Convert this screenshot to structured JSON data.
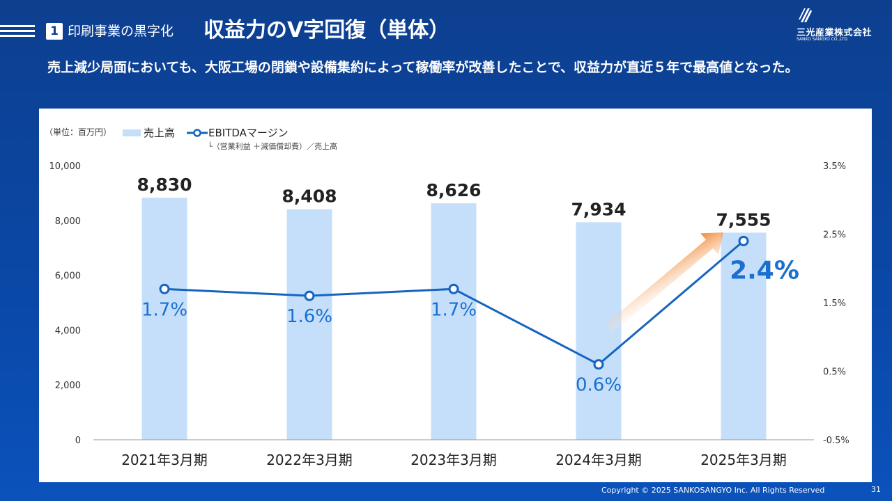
{
  "header": {
    "section_number": "1",
    "section_label": "印刷事業の黒字化",
    "title": "収益力のV字回復（単体）",
    "company_name": "三光産業株式会社",
    "company_sub": "SANKO SANGYO CO.,LTD."
  },
  "lead_text": "売上減少局面においても、大阪工場の閉鎖や設備集約によって稼働率が改善したことで、収益力が直近５年で最高値となった。",
  "footer": {
    "copyright": "Copyright © 2025  SANKOSANGYO Inc. All Rights Reserved",
    "page_number": "31"
  },
  "colors": {
    "bar": "#c5dffa",
    "line": "#1565c0",
    "highlight": "#1a6fd0",
    "arrow": "#f07a1c"
  },
  "chart_data": {
    "type": "bar",
    "unit_label": "（単位：百万円）",
    "categories": [
      "2021年3月期",
      "2022年3月期",
      "2023年3月期",
      "2024年3月期",
      "2025年3月期"
    ],
    "series": [
      {
        "name": "売上高",
        "type": "bar",
        "axis": "left",
        "values": [
          8830,
          8408,
          8626,
          7934,
          7555
        ],
        "value_labels": [
          "8,830",
          "8,408",
          "8,626",
          "7,934",
          "7,555"
        ]
      },
      {
        "name": "EBITDAマージン",
        "type": "line",
        "axis": "right",
        "values": [
          1.7,
          1.6,
          1.7,
          0.6,
          2.4
        ],
        "value_labels": [
          "1.7%",
          "1.6%",
          "1.7%",
          "0.6%",
          "2.4%"
        ]
      }
    ],
    "line_note": "└（営業利益 ＋減価償却費）／売上高",
    "y_left": {
      "min": 0,
      "max": 10000,
      "ticks": [
        "10,000",
        "8,000",
        "6,000",
        "4,000",
        "2,000",
        "0"
      ]
    },
    "y_right": {
      "min": -0.5,
      "max": 3.5,
      "ticks": [
        "3.5%",
        "2.5%",
        "1.5%",
        "0.5%",
        "-0.5%"
      ]
    },
    "legend_position": "top-left",
    "grid": false
  }
}
